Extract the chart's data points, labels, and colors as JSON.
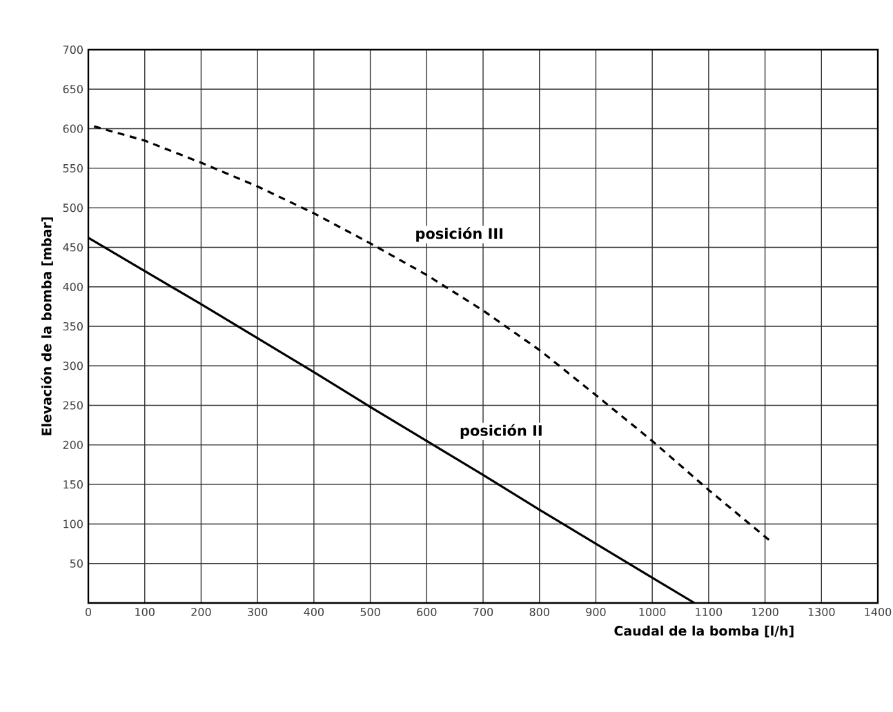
{
  "chart_data": {
    "type": "line",
    "xlabel": "Caudal de la bomba [l/h]",
    "ylabel": "Elevación de la bomba [mbar]",
    "x": [
      0,
      100,
      200,
      300,
      400,
      500,
      600,
      700,
      800,
      900,
      1000,
      1075
    ],
    "series": [
      {
        "color": "#000000",
        "line_style": "solid",
        "values": [
          462,
          420,
          378,
          335,
          292,
          248,
          205,
          162,
          118,
          75,
          32,
          0
        ]
      },
      {
        "color": "#000000",
        "line_style": "dashed",
        "x": [
          10,
          100,
          200,
          300,
          400,
          500,
          600,
          700,
          800,
          900,
          1000,
          1100,
          1210
        ],
        "values": [
          603,
          585,
          557,
          527,
          493,
          455,
          415,
          370,
          320,
          263,
          205,
          143,
          78
        ]
      }
    ],
    "annotations": [
      "posición III",
      "posición II"
    ],
    "xlim": [
      0,
      1400
    ],
    "ylim": [
      0,
      700
    ],
    "xticks": [
      0,
      100,
      200,
      300,
      400,
      500,
      600,
      700,
      800,
      900,
      1000,
      1100,
      1200,
      1300,
      1400
    ],
    "yticks": [
      {
        "value": 0,
        "label": null
      },
      50,
      100,
      150,
      200,
      250,
      300,
      350,
      400,
      450,
      500,
      550,
      600,
      650,
      700
    ],
    "grid": true,
    "marker": "none"
  }
}
